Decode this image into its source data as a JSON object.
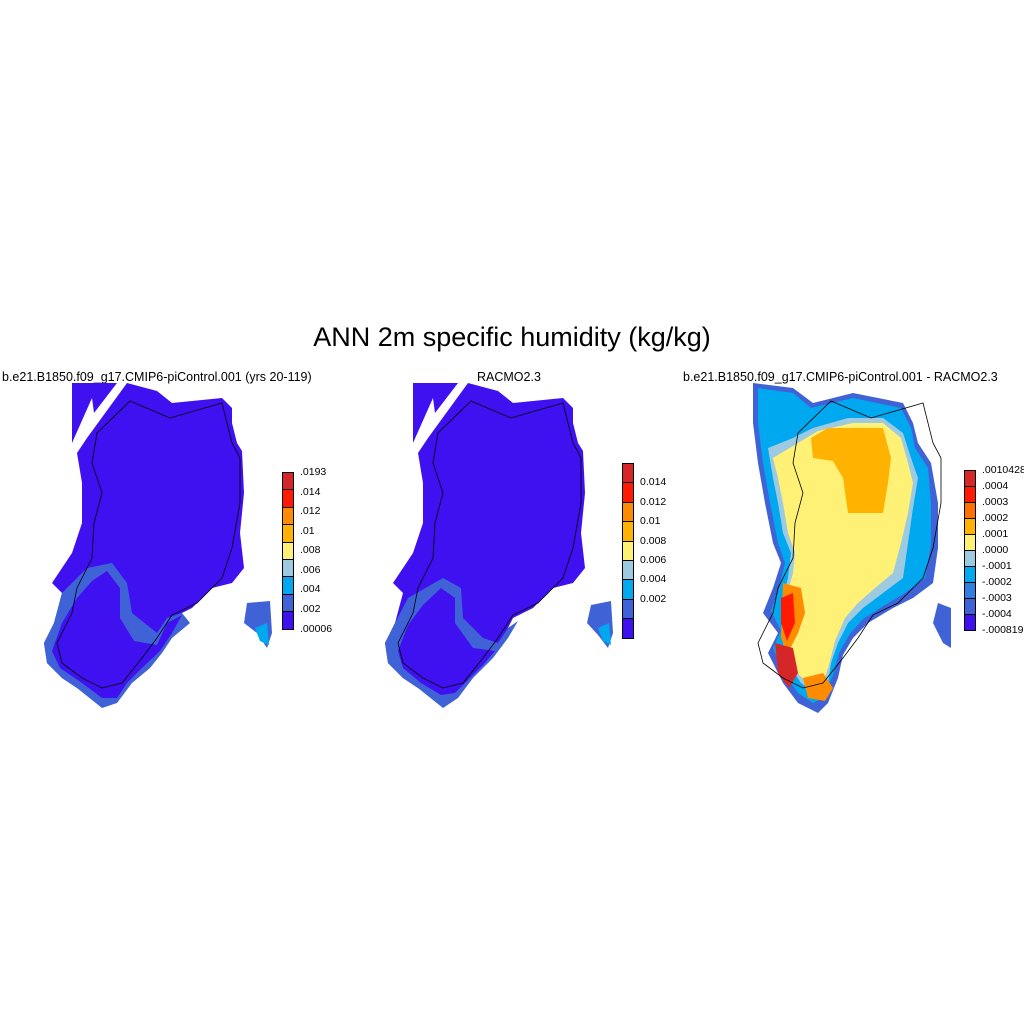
{
  "title": "ANN 2m specific humidity (kg/kg)",
  "panels": [
    {
      "title": "b.e21.B1850.f09_g17.CMIP6-piControl.001 (yrs 20-119)",
      "colorbar": {
        "labels": [
          ".0193",
          ".014",
          ".012",
          ".01",
          ".008",
          ".006",
          ".004",
          ".002",
          ".00006"
        ],
        "colors": [
          "#d62728",
          "#ff1a00",
          "#ff8c00",
          "#ffb300",
          "#fff176",
          "#9ecae1",
          "#00a8f0",
          "#3f63d6",
          "#3f10f0"
        ]
      }
    },
    {
      "title": "RACMO2.3",
      "colorbar": {
        "labels": [
          "0.014",
          "0.012",
          "0.01",
          "0.008",
          "0.006",
          "0.004",
          "0.002"
        ],
        "colors": [
          "#d62728",
          "#ff1a00",
          "#ff8c00",
          "#ffb300",
          "#fff176",
          "#9ecae1",
          "#00a8f0",
          "#3f63d6",
          "#3f10f0"
        ]
      }
    },
    {
      "title": "b.e21.B1850.f09_g17.CMIP6-piControl.001 - RACMO2.3",
      "colorbar": {
        "labels": [
          ".0010428",
          ".0004",
          ".0003",
          ".0002",
          ".0001",
          ".0000",
          "-.0001",
          "-.0002",
          "-.0003",
          "-.0004",
          "-.000819"
        ],
        "colors": [
          "#d62728",
          "#ff1a00",
          "#ff7000",
          "#ffb300",
          "#fff176",
          "#9ecae1",
          "#00a8f0",
          "#2f7fe0",
          "#3f63d6",
          "#3f10f0"
        ]
      }
    }
  ]
}
